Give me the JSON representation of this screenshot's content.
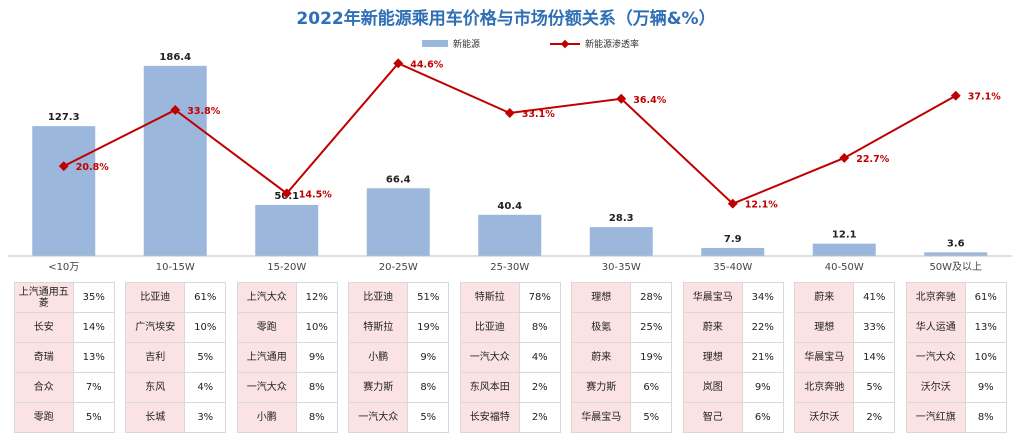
{
  "chart_data": {
    "type": "bar+line",
    "title": "2022年新能源乘用车价格与市场份额关系（万辆&%）",
    "legend_position": "top-center",
    "categories": [
      "<10万",
      "10-15W",
      "15-20W",
      "20-25W",
      "25-30W",
      "30-35W",
      "35-40W",
      "40-50W",
      "50W及以上"
    ],
    "series": [
      {
        "name": "新能源",
        "type": "bar",
        "color": "#9bb7dc",
        "values": [
          127.3,
          186.4,
          50.1,
          66.4,
          40.4,
          28.3,
          7.9,
          12.1,
          3.6
        ],
        "labels": [
          "127.3",
          "186.4",
          "50.1",
          "66.4",
          "40.4",
          "28.3",
          "7.9",
          "12.1",
          "3.6"
        ]
      },
      {
        "name": "新能源渗透率",
        "type": "line",
        "color": "#c00000",
        "values": [
          20.8,
          33.8,
          14.5,
          44.6,
          33.1,
          36.4,
          12.1,
          22.7,
          37.1
        ],
        "labels": [
          "20.8%",
          "33.8%",
          "14.5%",
          "44.6%",
          "33.1%",
          "36.4%",
          "12.1%",
          "22.7%",
          "37.1%"
        ]
      }
    ],
    "bar_ylim": [
      0,
      200
    ],
    "line_ylim": [
      0,
      50
    ],
    "grid": false
  },
  "brand_table": [
    [
      [
        "上汽通用五菱",
        "35%"
      ],
      [
        "长安",
        "14%"
      ],
      [
        "奇瑞",
        "13%"
      ],
      [
        "合众",
        "7%"
      ],
      [
        "零跑",
        "5%"
      ]
    ],
    [
      [
        "比亚迪",
        "61%"
      ],
      [
        "广汽埃安",
        "10%"
      ],
      [
        "吉利",
        "5%"
      ],
      [
        "东风",
        "4%"
      ],
      [
        "长城",
        "3%"
      ]
    ],
    [
      [
        "上汽大众",
        "12%"
      ],
      [
        "零跑",
        "10%"
      ],
      [
        "上汽通用",
        "9%"
      ],
      [
        "一汽大众",
        "8%"
      ],
      [
        "小鹏",
        "8%"
      ]
    ],
    [
      [
        "比亚迪",
        "51%"
      ],
      [
        "特斯拉",
        "19%"
      ],
      [
        "小鹏",
        "9%"
      ],
      [
        "赛力斯",
        "8%"
      ],
      [
        "一汽大众",
        "5%"
      ]
    ],
    [
      [
        "特斯拉",
        "78%"
      ],
      [
        "比亚迪",
        "8%"
      ],
      [
        "一汽大众",
        "4%"
      ],
      [
        "东风本田",
        "2%"
      ],
      [
        "长安福特",
        "2%"
      ]
    ],
    [
      [
        "理想",
        "28%"
      ],
      [
        "极氪",
        "25%"
      ],
      [
        "蔚来",
        "19%"
      ],
      [
        "赛力斯",
        "6%"
      ],
      [
        "华晨宝马",
        "5%"
      ]
    ],
    [
      [
        "华晨宝马",
        "34%"
      ],
      [
        "蔚来",
        "22%"
      ],
      [
        "理想",
        "21%"
      ],
      [
        "岚图",
        "9%"
      ],
      [
        "智己",
        "6%"
      ]
    ],
    [
      [
        "蔚来",
        "41%"
      ],
      [
        "理想",
        "33%"
      ],
      [
        "华晨宝马",
        "14%"
      ],
      [
        "北京奔驰",
        "5%"
      ],
      [
        "沃尔沃",
        "2%"
      ]
    ],
    [
      [
        "北京奔驰",
        "61%"
      ],
      [
        "华人运通",
        "13%"
      ],
      [
        "一汽大众",
        "10%"
      ],
      [
        "沃尔沃",
        "9%"
      ],
      [
        "一汽红旗",
        "8%"
      ]
    ]
  ]
}
